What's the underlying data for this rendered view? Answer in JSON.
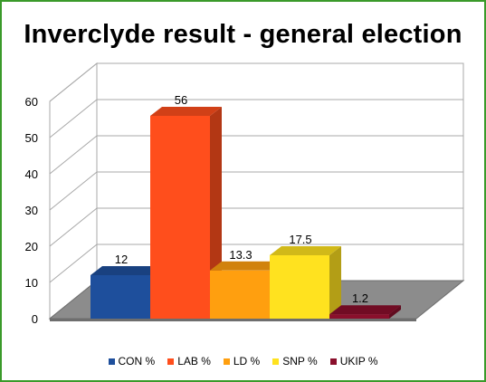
{
  "chart_data": {
    "type": "bar",
    "title": "Inverclyde result - general election",
    "categories": [
      "CON %",
      "LAB %",
      "LD %",
      "SNP %",
      "UKIP %"
    ],
    "values": [
      12,
      56,
      13.3,
      17.5,
      1.2
    ],
    "value_labels": [
      "12",
      "56",
      "13.3",
      "17.5",
      "1.2"
    ],
    "colors": [
      "#1e4f9c",
      "#ff4e1c",
      "#ff9f0f",
      "#ffe21f",
      "#8a0f2c"
    ],
    "ylim": [
      0,
      60
    ],
    "yticks": [
      "0",
      "10",
      "20",
      "30",
      "40",
      "50",
      "60"
    ],
    "grid": true,
    "legend_position": "bottom",
    "style": "3d"
  }
}
